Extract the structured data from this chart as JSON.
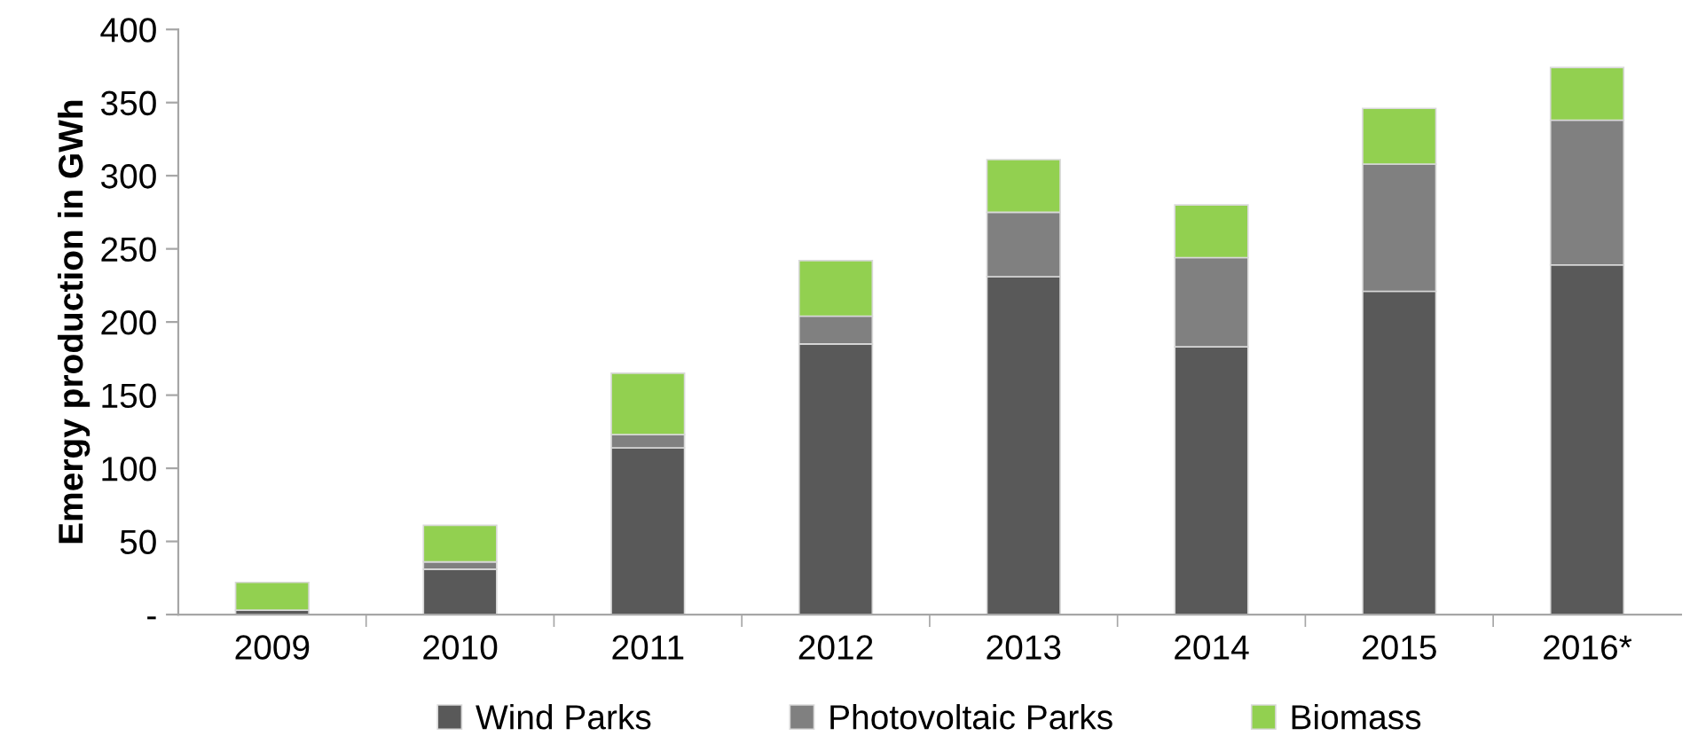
{
  "chart_data": {
    "type": "bar",
    "stacked": true,
    "ylabel": "Emergy production in GWh",
    "categories": [
      "2009",
      "2010",
      "2011",
      "2012",
      "2013",
      "2014",
      "2015",
      "2016*"
    ],
    "series": [
      {
        "name": "Wind Parks",
        "color": "#595959",
        "values": [
          3,
          31,
          114,
          185,
          231,
          183,
          221,
          239
        ]
      },
      {
        "name": "Photovoltaic Parks",
        "color": "#808080",
        "values": [
          null,
          5,
          9,
          19,
          44,
          61,
          87,
          99
        ]
      },
      {
        "name": "Biomass",
        "color": "#92d050",
        "values": [
          19,
          25,
          42,
          38,
          36,
          36,
          38,
          36
        ]
      }
    ],
    "ylim": [
      0,
      400
    ],
    "yticks": [
      {
        "value": 0,
        "label": "-"
      },
      50,
      100,
      150,
      200,
      250,
      300,
      350,
      400
    ],
    "grid": false,
    "legend": "bottom"
  }
}
